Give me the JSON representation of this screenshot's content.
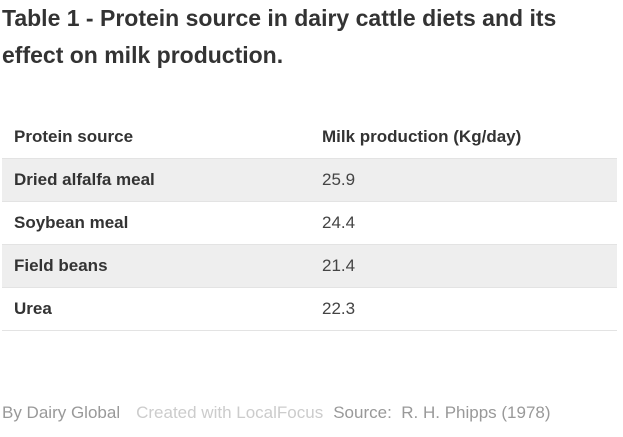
{
  "title": "Table 1 - Protein source in dairy cattle diets and its effect on milk production.",
  "chart_data": {
    "type": "table",
    "columns": [
      "Protein source",
      "Milk production (Kg/day)"
    ],
    "rows": [
      {
        "source": "Dried alfalfa meal",
        "milk": "25.9"
      },
      {
        "source": "Soybean meal",
        "milk": "24.4"
      },
      {
        "source": "Field beans",
        "milk": "21.4"
      },
      {
        "source": "Urea",
        "milk": "22.3"
      }
    ]
  },
  "footer": {
    "byline": "By Dairy Global",
    "credit": "Created with LocalFocus",
    "source_label": "Source:",
    "source_value": "R. H. Phipps (1978)"
  },
  "colors": {
    "row_shade": "#eeeeee",
    "text": "#333333",
    "muted": "#999999"
  }
}
